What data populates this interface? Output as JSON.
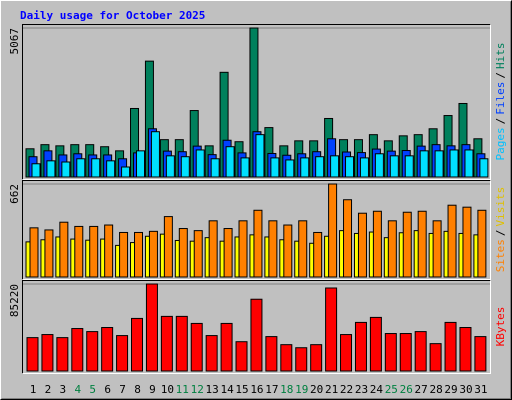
{
  "chart_data": [
    {
      "type": "bar",
      "title": "Daily usage for October 2025",
      "ylim": [
        0,
        5067
      ],
      "yticks": [
        5067
      ],
      "legend_separator": "/",
      "series": [
        {
          "name": "Hits",
          "color": "#00805c",
          "values": [
            960,
            1100,
            1060,
            1100,
            1100,
            1030,
            890,
            2330,
            3940,
            1270,
            1270,
            2260,
            1060,
            3560,
            1200,
            5067,
            1680,
            1060,
            1230,
            1230,
            1990,
            1270,
            1270,
            1440,
            1230,
            1400,
            1440,
            1640,
            2090,
            2500,
            1300
          ]
        },
        {
          "name": "Files",
          "color": "#0040ff",
          "values": [
            690,
            890,
            750,
            790,
            750,
            750,
            620,
            820,
            1640,
            880,
            860,
            1050,
            760,
            1250,
            820,
            1540,
            800,
            740,
            790,
            860,
            1300,
            850,
            830,
            950,
            880,
            900,
            1050,
            1100,
            1060,
            1100,
            790
          ]
        },
        {
          "name": "Pages",
          "color": "#00e0ff",
          "values": [
            450,
            550,
            510,
            620,
            620,
            550,
            340,
            890,
            1540,
            720,
            690,
            920,
            620,
            1030,
            650,
            1440,
            650,
            580,
            650,
            690,
            720,
            690,
            650,
            790,
            720,
            720,
            890,
            890,
            920,
            920,
            620
          ]
        }
      ]
    },
    {
      "type": "bar",
      "ylim": [
        0,
        662
      ],
      "yticks": [
        662
      ],
      "legend_separator": "/",
      "series": [
        {
          "name": "Visits",
          "color": "#ffff00",
          "values": [
            250,
            265,
            285,
            270,
            262,
            270,
            225,
            245,
            290,
            305,
            260,
            255,
            280,
            255,
            285,
            300,
            285,
            265,
            255,
            240,
            290,
            330,
            310,
            320,
            280,
            315,
            330,
            310,
            325,
            310,
            300
          ]
        },
        {
          "name": "Sites",
          "color": "#ff8000",
          "values": [
            350,
            335,
            390,
            360,
            360,
            370,
            317,
            317,
            325,
            430,
            345,
            330,
            400,
            345,
            400,
            475,
            400,
            370,
            400,
            317,
            662,
            550,
            454,
            468,
            400,
            461,
            468,
            400,
            511,
            497,
            475
          ]
        }
      ]
    },
    {
      "type": "bar",
      "ylim": [
        0,
        85220
      ],
      "yticks": [
        85220
      ],
      "categories": [
        "1",
        "2",
        "3",
        "4",
        "5",
        "6",
        "7",
        "8",
        "9",
        "10",
        "11",
        "12",
        "13",
        "14",
        "15",
        "16",
        "17",
        "18",
        "19",
        "20",
        "21",
        "22",
        "23",
        "24",
        "25",
        "26",
        "27",
        "28",
        "29",
        "30",
        "31"
      ],
      "category_colors": [
        "#000000",
        "#000000",
        "#000000",
        "#008040",
        "#008040",
        "#000000",
        "#000000",
        "#000000",
        "#000000",
        "#000000",
        "#008040",
        "#008040",
        "#000000",
        "#000000",
        "#000000",
        "#000000",
        "#000000",
        "#008040",
        "#008040",
        "#000000",
        "#000000",
        "#000000",
        "#000000",
        "#000000",
        "#008040",
        "#008040",
        "#000000",
        "#000000",
        "#000000",
        "#000000",
        "#000000"
      ],
      "series": [
        {
          "name": "KBytes",
          "color": "#ff0000",
          "values": [
            32700,
            35700,
            32700,
            41600,
            38600,
            42600,
            34700,
            51500,
            85220,
            53500,
            53500,
            46600,
            34700,
            46600,
            28700,
            70300,
            33700,
            25800,
            22800,
            25800,
            81300,
            35700,
            47600,
            52500,
            36700,
            36700,
            38600,
            26800,
            47600,
            42600,
            33700
          ]
        }
      ]
    }
  ]
}
